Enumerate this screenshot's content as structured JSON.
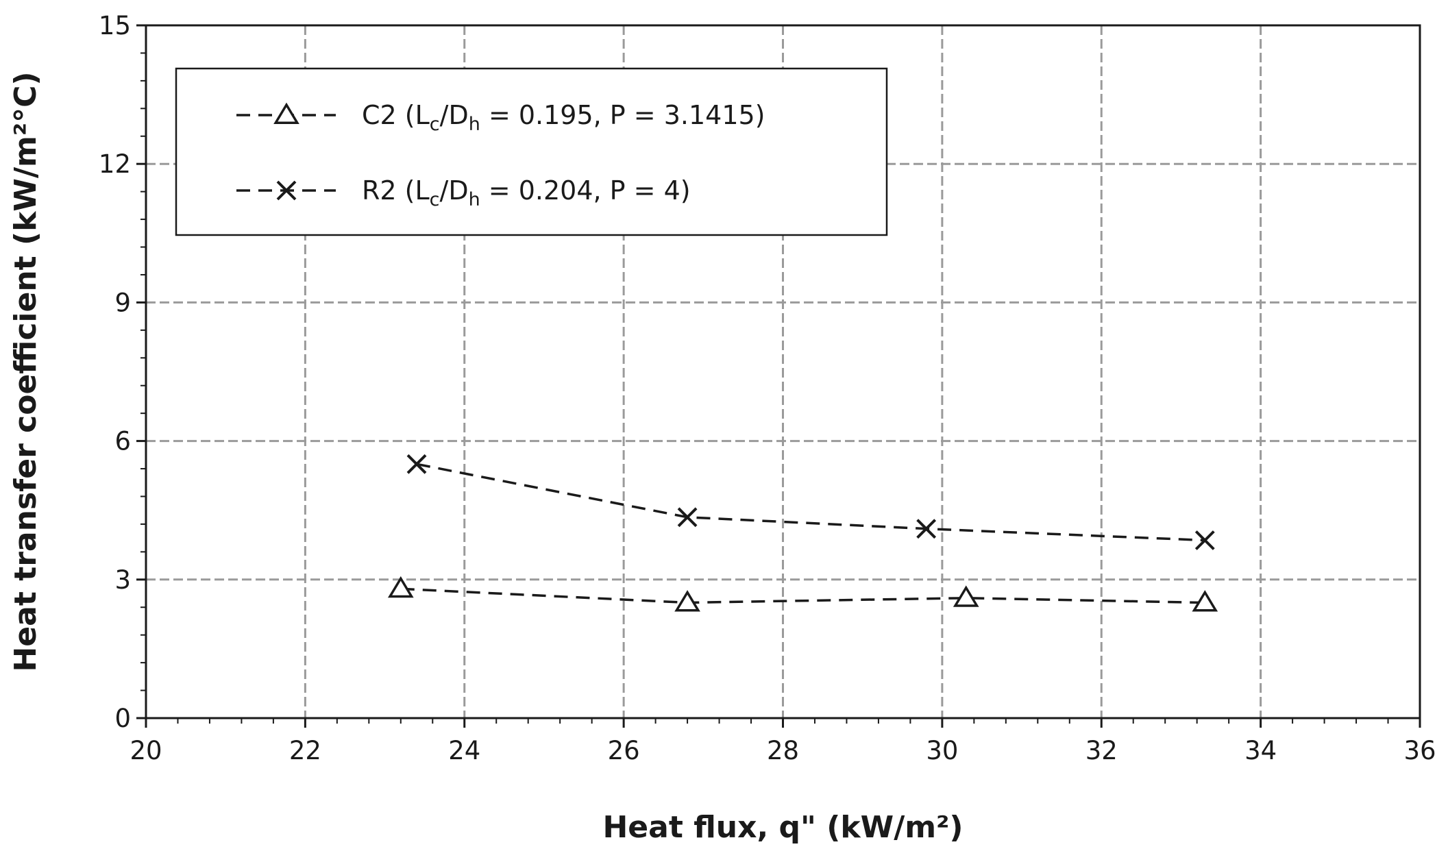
{
  "chart_data": {
    "type": "line",
    "xlabel": "Heat flux, q\" (kW/m²)",
    "ylabel": "Heat transfer coefficient (kW/m²°C)",
    "xlim": [
      20,
      36
    ],
    "ylim": [
      0,
      15
    ],
    "x_ticks": [
      20,
      22,
      24,
      26,
      28,
      30,
      32,
      34,
      36
    ],
    "y_ticks": [
      0,
      3,
      6,
      9,
      12,
      15
    ],
    "grid": true,
    "legend_position": "top-left",
    "series": [
      {
        "name": "C2 (Lc/Dh = 0.195, P = 3.1415)",
        "name_prefix": "C2 (L",
        "name_sub1": "c",
        "name_mid": "/D",
        "name_sub2": "h",
        "name_suffix": " = 0.195, P = 3.1415)",
        "marker": "triangle",
        "line": "dashed",
        "x": [
          23.2,
          26.8,
          30.3,
          33.3
        ],
        "y": [
          2.8,
          2.5,
          2.6,
          2.5
        ]
      },
      {
        "name": "R2 (Lc/Dh = 0.204, P = 4)",
        "name_prefix": "R2 (L",
        "name_sub1": "c",
        "name_mid": "/D",
        "name_sub2": "h",
        "name_suffix": " = 0.204, P = 4)",
        "marker": "x",
        "line": "dashed",
        "x": [
          23.4,
          26.8,
          29.8,
          33.3
        ],
        "y": [
          5.5,
          4.35,
          4.1,
          3.85
        ]
      }
    ]
  }
}
